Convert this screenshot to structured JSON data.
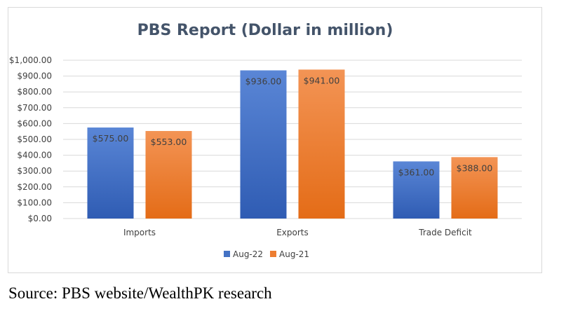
{
  "chart_data": {
    "type": "bar",
    "title": "PBS Report (Dollar in million)",
    "categories": [
      "Imports",
      "Exports",
      "Trade Deficit"
    ],
    "series": [
      {
        "name": "Aug-22",
        "values": [
          575,
          936,
          361
        ],
        "labels": [
          "$575.00",
          "$936.00",
          "$361.00"
        ],
        "color": "#4472c4"
      },
      {
        "name": "Aug-21",
        "values": [
          553,
          941,
          388
        ],
        "labels": [
          "$553.00",
          "$941.00",
          "$388.00"
        ],
        "color": "#ed7d31"
      }
    ],
    "y_ticks": [
      "$0.00",
      "$100.00",
      "$200.00",
      "$300.00",
      "$400.00",
      "$500.00",
      "$600.00",
      "$700.00",
      "$800.00",
      "$900.00",
      "$1,000.00"
    ],
    "ylim": [
      0,
      1000
    ],
    "grid": true,
    "legend_position": "bottom"
  },
  "source": "Source: PBS website/WealthPK research"
}
